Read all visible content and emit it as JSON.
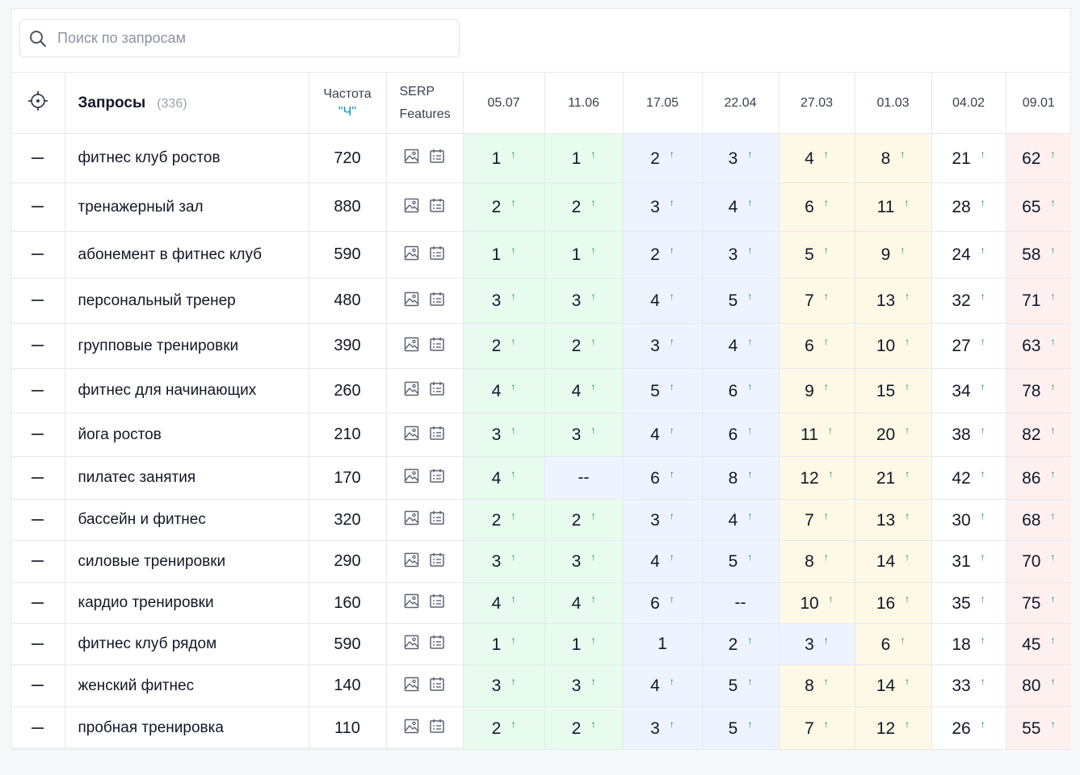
{
  "search": {
    "placeholder": "Поиск по запросам",
    "icon": "search-icon"
  },
  "header": {
    "queries_label": "Запросы",
    "queries_count": "(336)",
    "freq_label": "Частота",
    "freq_unit": "\"Ч\"",
    "serp_line1": "SERP",
    "serp_line2": "Features",
    "dates": [
      "05.07",
      "11.06",
      "17.05",
      "22.04",
      "27.03",
      "01.03",
      "04.02",
      "09.01"
    ]
  },
  "colors": {
    "arrow_up": "#0a8f2e",
    "freq_unit": "#0b8fd8"
  },
  "rows": [
    {
      "query": "фитнес клуб ростов",
      "freq": "720",
      "positions": [
        "1",
        "1",
        "2",
        "3",
        "4",
        "8",
        "21",
        "62"
      ],
      "up": [
        true,
        true,
        true,
        true,
        true,
        true,
        true,
        true
      ],
      "bg": [
        "g",
        "g",
        "b",
        "b",
        "y",
        "y",
        "w",
        "r"
      ]
    },
    {
      "query": "тренажерный зал",
      "freq": "880",
      "positions": [
        "2",
        "2",
        "3",
        "4",
        "6",
        "11",
        "28",
        "65"
      ],
      "up": [
        true,
        true,
        true,
        true,
        true,
        true,
        true,
        true
      ],
      "bg": [
        "g",
        "g",
        "b",
        "b",
        "y",
        "y",
        "w",
        "r"
      ]
    },
    {
      "query": "абонемент в фитнес клуб",
      "freq": "590",
      "positions": [
        "1",
        "1",
        "2",
        "3",
        "5",
        "9",
        "24",
        "58"
      ],
      "up": [
        true,
        true,
        true,
        true,
        true,
        true,
        true,
        true
      ],
      "bg": [
        "g",
        "g",
        "b",
        "b",
        "y",
        "y",
        "w",
        "r"
      ]
    },
    {
      "query": "персональный тренер",
      "freq": "480",
      "positions": [
        "3",
        "3",
        "4",
        "5",
        "7",
        "13",
        "32",
        "71"
      ],
      "up": [
        true,
        true,
        true,
        true,
        true,
        true,
        true,
        true
      ],
      "bg": [
        "g",
        "g",
        "b",
        "b",
        "y",
        "y",
        "w",
        "r"
      ]
    },
    {
      "query": "групповые тренировки",
      "freq": "390",
      "positions": [
        "2",
        "2",
        "3",
        "4",
        "6",
        "10",
        "27",
        "63"
      ],
      "up": [
        true,
        true,
        true,
        true,
        true,
        true,
        true,
        true
      ],
      "bg": [
        "g",
        "g",
        "b",
        "b",
        "y",
        "y",
        "w",
        "r"
      ]
    },
    {
      "query": "фитнес для начинающих",
      "freq": "260",
      "positions": [
        "4",
        "4",
        "5",
        "6",
        "9",
        "15",
        "34",
        "78"
      ],
      "up": [
        true,
        true,
        true,
        true,
        true,
        true,
        true,
        true
      ],
      "bg": [
        "g",
        "g",
        "b",
        "b",
        "y",
        "y",
        "w",
        "r"
      ]
    },
    {
      "query": "йога ростов",
      "freq": "210",
      "positions": [
        "3",
        "3",
        "4",
        "6",
        "11",
        "20",
        "38",
        "82"
      ],
      "up": [
        true,
        true,
        true,
        true,
        true,
        true,
        true,
        true
      ],
      "bg": [
        "g",
        "g",
        "b",
        "b",
        "y",
        "y",
        "w",
        "r"
      ]
    },
    {
      "query": "пилатес занятия",
      "freq": "170",
      "positions": [
        "4",
        "--",
        "6",
        "8",
        "12",
        "21",
        "42",
        "86"
      ],
      "up": [
        true,
        false,
        true,
        true,
        true,
        true,
        true,
        true
      ],
      "bg": [
        "g",
        "b",
        "b",
        "b",
        "y",
        "y",
        "w",
        "r"
      ]
    },
    {
      "query": "бассейн и фитнес",
      "freq": "320",
      "positions": [
        "2",
        "2",
        "3",
        "4",
        "7",
        "13",
        "30",
        "68"
      ],
      "up": [
        true,
        true,
        true,
        true,
        true,
        true,
        true,
        true
      ],
      "bg": [
        "g",
        "g",
        "b",
        "b",
        "y",
        "y",
        "w",
        "r"
      ]
    },
    {
      "query": "силовые тренировки",
      "freq": "290",
      "positions": [
        "3",
        "3",
        "4",
        "5",
        "8",
        "14",
        "31",
        "70"
      ],
      "up": [
        true,
        true,
        true,
        true,
        true,
        true,
        true,
        true
      ],
      "bg": [
        "g",
        "g",
        "b",
        "b",
        "y",
        "y",
        "w",
        "r"
      ]
    },
    {
      "query": "кардио тренировки",
      "freq": "160",
      "positions": [
        "4",
        "4",
        "6",
        "--",
        "10",
        "16",
        "35",
        "75"
      ],
      "up": [
        true,
        true,
        true,
        false,
        true,
        true,
        true,
        true
      ],
      "bg": [
        "g",
        "g",
        "b",
        "b",
        "y",
        "y",
        "w",
        "r"
      ]
    },
    {
      "query": "фитнес клуб рядом",
      "freq": "590",
      "positions": [
        "1",
        "1",
        "1",
        "2",
        "3",
        "6",
        "18",
        "45"
      ],
      "up": [
        true,
        true,
        false,
        true,
        true,
        true,
        true,
        true
      ],
      "bg": [
        "g",
        "g",
        "b",
        "b",
        "b",
        "y",
        "w",
        "r"
      ]
    },
    {
      "query": "женский фитнес",
      "freq": "140",
      "positions": [
        "3",
        "3",
        "4",
        "5",
        "8",
        "14",
        "33",
        "80"
      ],
      "up": [
        true,
        true,
        true,
        true,
        true,
        true,
        true,
        true
      ],
      "bg": [
        "g",
        "g",
        "b",
        "b",
        "y",
        "y",
        "w",
        "r"
      ]
    },
    {
      "query": "пробная тренировка",
      "freq": "110",
      "positions": [
        "2",
        "2",
        "3",
        "5",
        "7",
        "12",
        "26",
        "55"
      ],
      "up": [
        true,
        true,
        true,
        true,
        true,
        true,
        true,
        true
      ],
      "bg": [
        "g",
        "g",
        "b",
        "b",
        "y",
        "y",
        "w",
        "r"
      ]
    }
  ]
}
